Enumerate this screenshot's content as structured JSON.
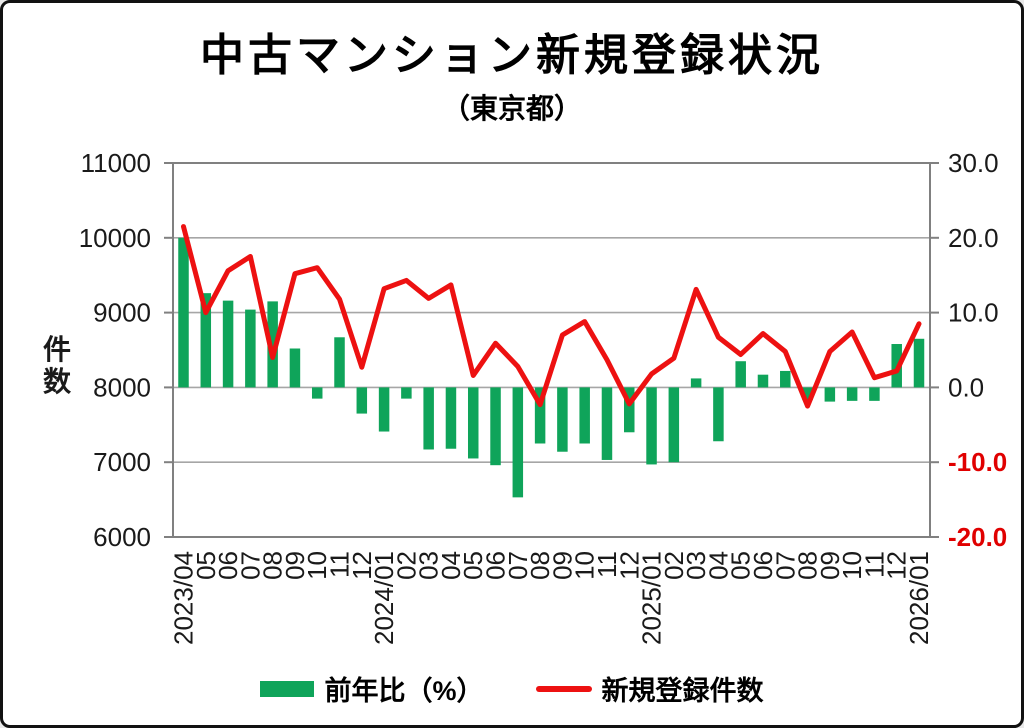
{
  "header": {
    "title": "中古マンション新規登録状況",
    "subtitle": "（東京都）"
  },
  "y_axis_left": {
    "label": "件数",
    "ticks": [
      "11000",
      "10000",
      "9000",
      "8000",
      "7000",
      "6000"
    ]
  },
  "y_axis_right": {
    "ticks": [
      "30.0",
      "20.0",
      "10.0",
      "0.0",
      "-10.0",
      "-20.0"
    ],
    "negative_tick_color": "#E00000"
  },
  "legend": {
    "bar_label": "前年比（%）",
    "line_label": "新規登録件数"
  },
  "colors": {
    "bar_green": "#0FA45A",
    "line_red": "#ED1111",
    "grid_gray": "#A6A6A6",
    "plot_border_gray": "#808080",
    "negative_label_red": "#E00000",
    "text_black": "#1A1A1A"
  },
  "chart_data": {
    "type": "combo-bar-line",
    "title": "中古マンション新規登録状況（東京都）",
    "categories": [
      "2023/04",
      "05",
      "06",
      "07",
      "08",
      "09",
      "10",
      "11",
      "12",
      "2024/01",
      "02",
      "03",
      "04",
      "05",
      "06",
      "07",
      "08",
      "09",
      "10",
      "11",
      "12",
      "2025/01",
      "02",
      "03",
      "04",
      "05",
      "06",
      "07",
      "08",
      "09",
      "10",
      "11",
      "12",
      "2026/01"
    ],
    "series": [
      {
        "name": "前年比（%）",
        "type": "bar",
        "axis": "right",
        "unit": "%",
        "color": "#0FA45A",
        "values": [
          20.0,
          12.6,
          11.6,
          10.4,
          11.5,
          5.2,
          -1.5,
          6.7,
          -3.5,
          -5.9,
          -1.5,
          -8.3,
          -8.2,
          -9.5,
          -10.4,
          -14.7,
          -7.5,
          -8.6,
          -7.5,
          -9.7,
          -6.0,
          -10.3,
          -10.0,
          1.2,
          -7.2,
          3.5,
          1.7,
          2.2,
          -1.7,
          -1.9,
          -1.8,
          -1.8,
          5.8,
          6.5
        ]
      },
      {
        "name": "新規登録件数",
        "type": "line",
        "axis": "left",
        "unit": "件",
        "color": "#ED1111",
        "values": [
          10150,
          9000,
          9560,
          9750,
          8400,
          9520,
          9600,
          9180,
          8270,
          9320,
          9430,
          9190,
          9370,
          8160,
          8590,
          8280,
          7770,
          8700,
          8880,
          8370,
          7780,
          8180,
          8390,
          9310,
          8670,
          8440,
          8720,
          8480,
          7750,
          8480,
          8740,
          8130,
          8220,
          8850
        ]
      }
    ],
    "ylabel_left": "件数",
    "ylim_left": [
      6000,
      11000
    ],
    "ylim_right": [
      -20.0,
      30.0
    ],
    "grid": true,
    "legend_position": "bottom"
  }
}
